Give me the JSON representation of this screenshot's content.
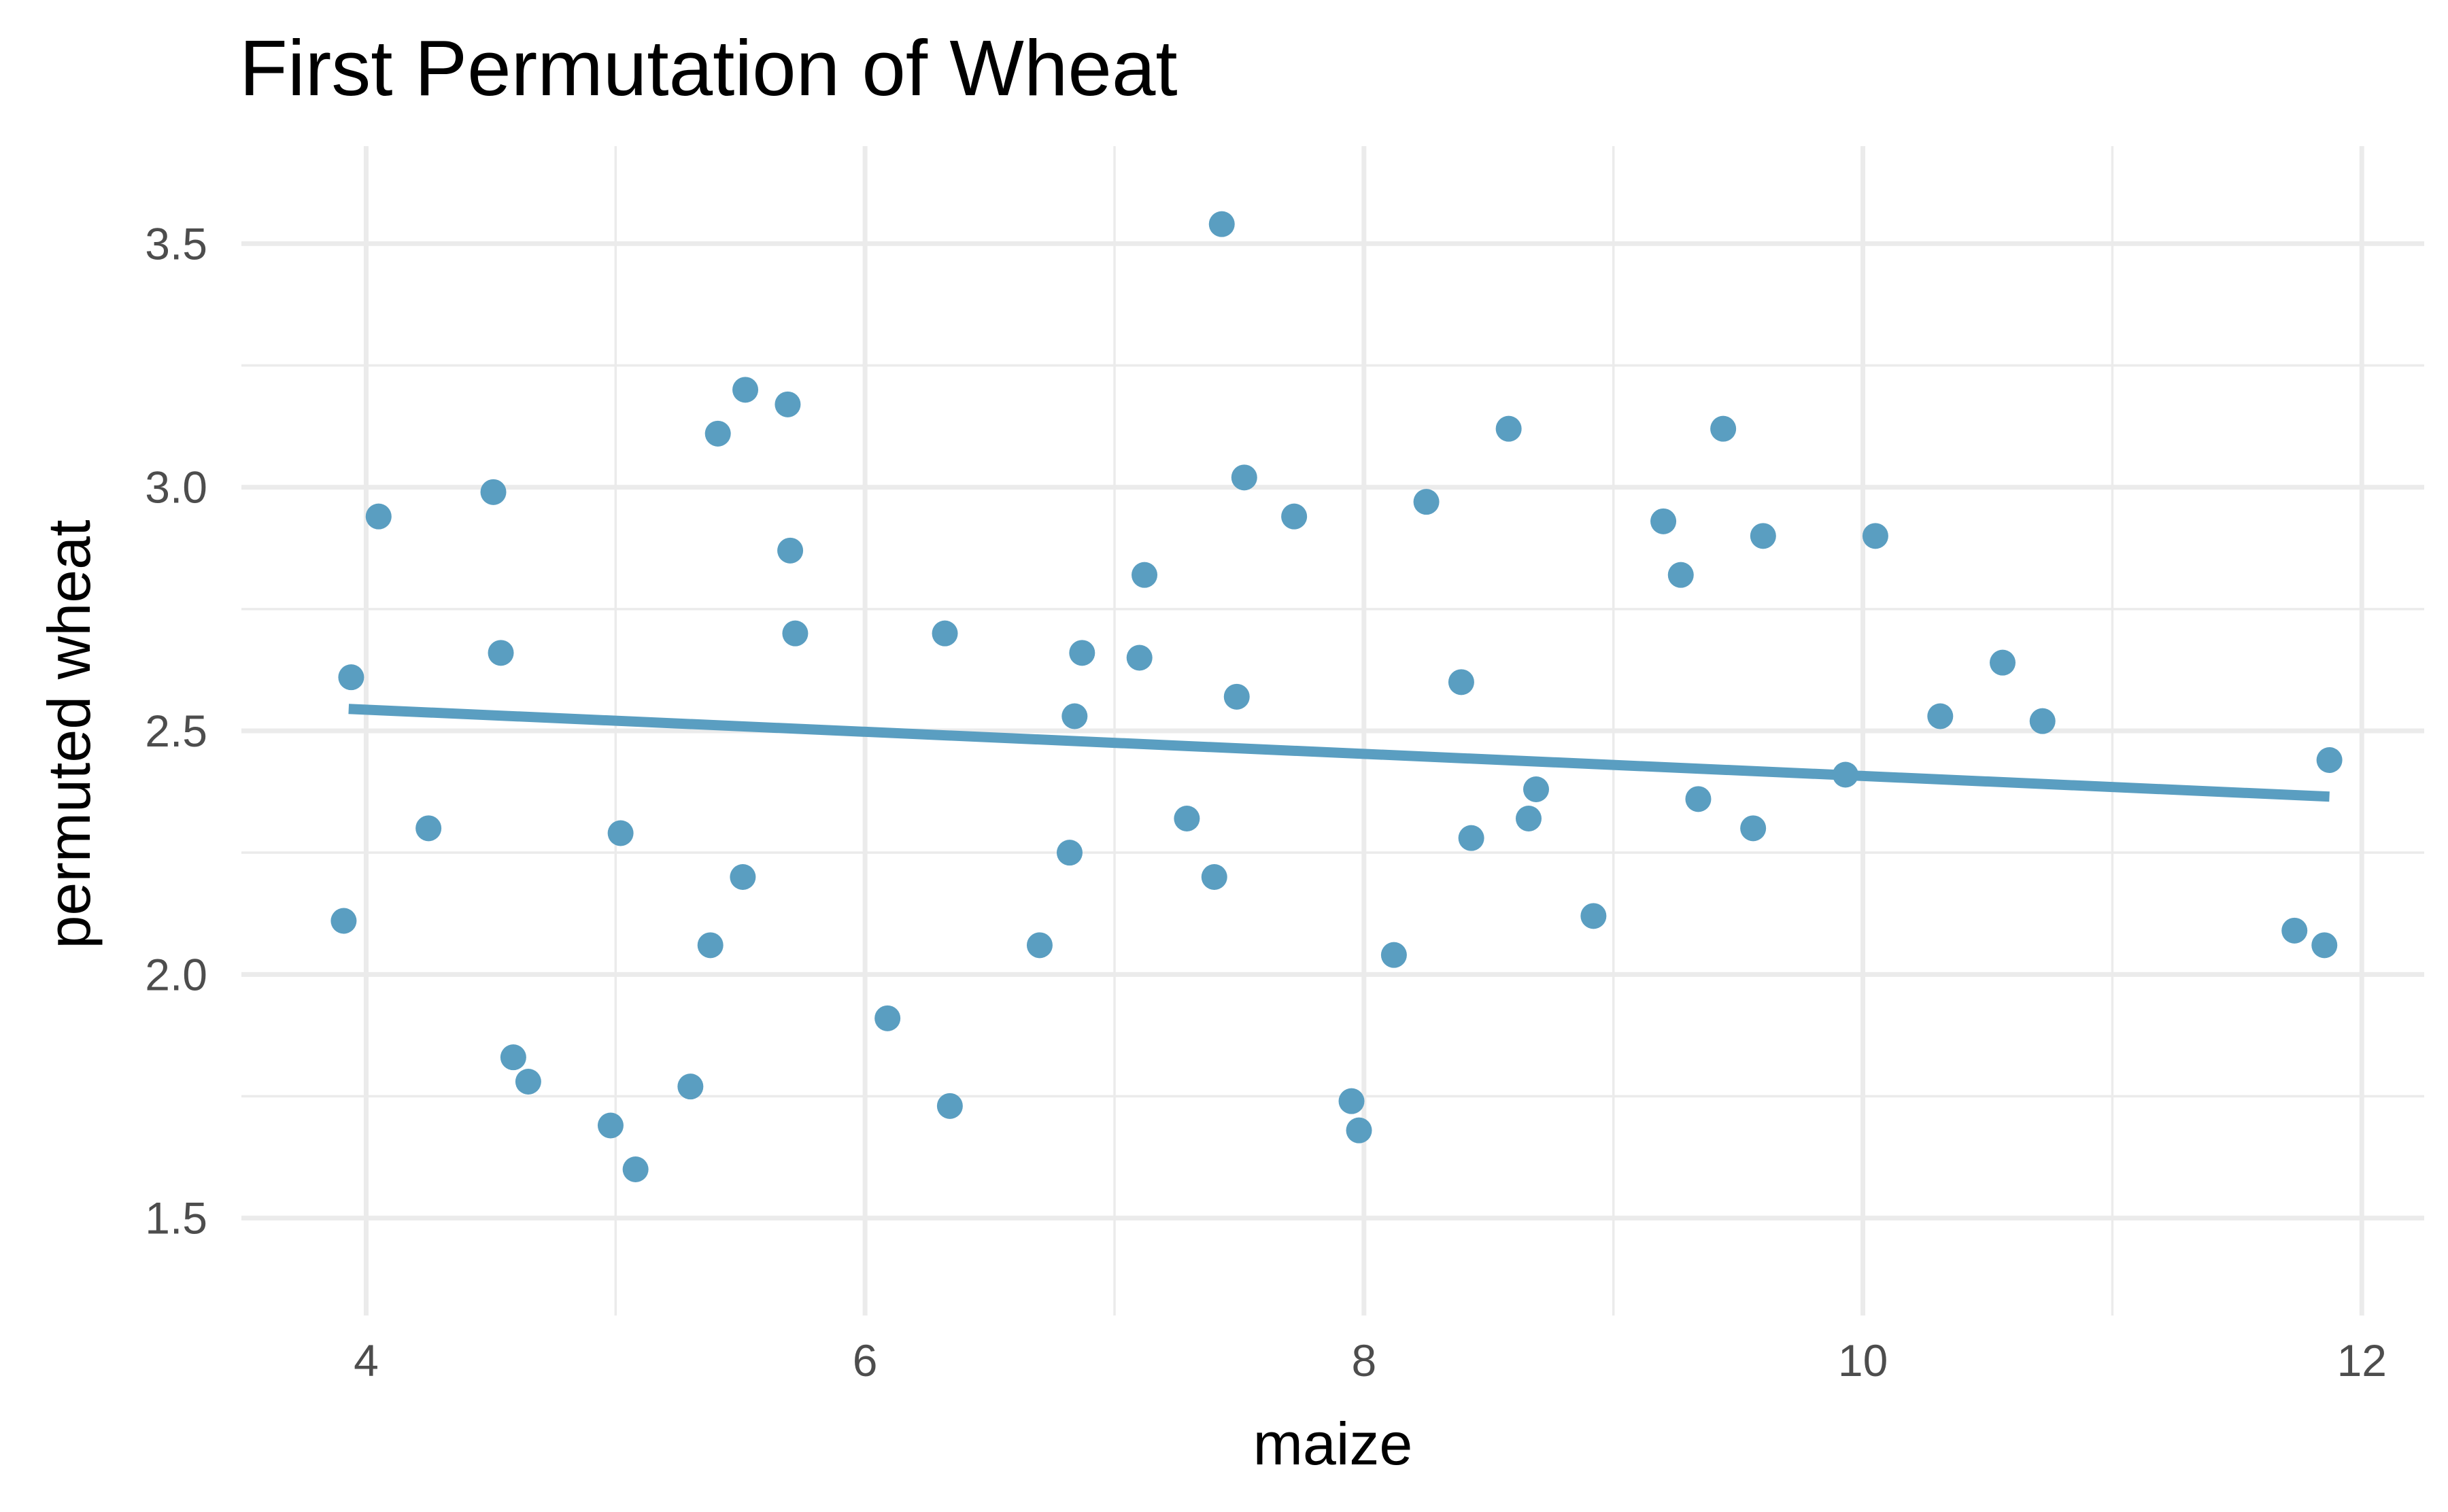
{
  "chart_data": {
    "type": "scatter",
    "title": "First Permutation of Wheat",
    "xlabel": "maize",
    "ylabel": "permuted wheat",
    "xlim": [
      3.5,
      12.25
    ],
    "ylim": [
      1.3,
      3.7
    ],
    "x_ticks": [
      4,
      6,
      8,
      10,
      12
    ],
    "x_tick_labels": [
      "4",
      "6",
      "8",
      "10",
      "12"
    ],
    "y_ticks": [
      1.5,
      2.0,
      2.5,
      3.0,
      3.5
    ],
    "y_tick_labels": [
      "1.5",
      "2.0",
      "2.5",
      "3.0",
      "3.5"
    ],
    "x_minor_ticks": [
      5,
      7,
      9,
      11
    ],
    "y_minor_ticks": [
      1.75,
      2.25,
      2.75,
      3.25
    ],
    "grid": true,
    "legend": "none",
    "point_color": "#5a9ec1",
    "line_color": "#5a9ec1",
    "points": [
      {
        "x": 3.91,
        "y": 2.11
      },
      {
        "x": 3.94,
        "y": 2.61
      },
      {
        "x": 4.05,
        "y": 2.94
      },
      {
        "x": 4.25,
        "y": 2.3
      },
      {
        "x": 4.51,
        "y": 2.99
      },
      {
        "x": 4.54,
        "y": 2.66
      },
      {
        "x": 4.59,
        "y": 1.83
      },
      {
        "x": 4.65,
        "y": 1.78
      },
      {
        "x": 4.98,
        "y": 1.69
      },
      {
        "x": 5.02,
        "y": 2.29
      },
      {
        "x": 5.08,
        "y": 1.6
      },
      {
        "x": 5.3,
        "y": 1.77
      },
      {
        "x": 5.38,
        "y": 2.06
      },
      {
        "x": 5.41,
        "y": 3.11
      },
      {
        "x": 5.51,
        "y": 2.2
      },
      {
        "x": 5.52,
        "y": 3.2
      },
      {
        "x": 5.69,
        "y": 3.17
      },
      {
        "x": 5.7,
        "y": 2.87
      },
      {
        "x": 5.72,
        "y": 2.7
      },
      {
        "x": 6.09,
        "y": 1.91
      },
      {
        "x": 6.32,
        "y": 2.7
      },
      {
        "x": 6.34,
        "y": 1.73
      },
      {
        "x": 6.7,
        "y": 2.06
      },
      {
        "x": 6.82,
        "y": 2.25
      },
      {
        "x": 6.84,
        "y": 2.53
      },
      {
        "x": 6.87,
        "y": 2.66
      },
      {
        "x": 7.1,
        "y": 2.65
      },
      {
        "x": 7.12,
        "y": 2.82
      },
      {
        "x": 7.29,
        "y": 2.32
      },
      {
        "x": 7.4,
        "y": 2.2
      },
      {
        "x": 7.43,
        "y": 3.54
      },
      {
        "x": 7.49,
        "y": 2.57
      },
      {
        "x": 7.52,
        "y": 3.02
      },
      {
        "x": 7.72,
        "y": 2.94
      },
      {
        "x": 7.95,
        "y": 1.74
      },
      {
        "x": 7.98,
        "y": 1.68
      },
      {
        "x": 8.12,
        "y": 2.04
      },
      {
        "x": 8.25,
        "y": 2.97
      },
      {
        "x": 8.39,
        "y": 2.6
      },
      {
        "x": 8.43,
        "y": 2.28
      },
      {
        "x": 8.58,
        "y": 3.12
      },
      {
        "x": 8.66,
        "y": 2.32
      },
      {
        "x": 8.69,
        "y": 2.38
      },
      {
        "x": 8.92,
        "y": 2.12
      },
      {
        "x": 9.2,
        "y": 2.93
      },
      {
        "x": 9.27,
        "y": 2.82
      },
      {
        "x": 9.34,
        "y": 2.36
      },
      {
        "x": 9.44,
        "y": 3.12
      },
      {
        "x": 9.56,
        "y": 2.3
      },
      {
        "x": 9.6,
        "y": 2.9
      },
      {
        "x": 9.93,
        "y": 2.41
      },
      {
        "x": 10.05,
        "y": 2.9
      },
      {
        "x": 10.31,
        "y": 2.53
      },
      {
        "x": 10.56,
        "y": 2.64
      },
      {
        "x": 10.72,
        "y": 2.52
      },
      {
        "x": 11.73,
        "y": 2.09
      },
      {
        "x": 11.85,
        "y": 2.06
      },
      {
        "x": 11.87,
        "y": 2.44
      }
    ],
    "fit_line": {
      "x": [
        3.93,
        11.87
      ],
      "y": [
        2.545,
        2.365
      ]
    }
  }
}
